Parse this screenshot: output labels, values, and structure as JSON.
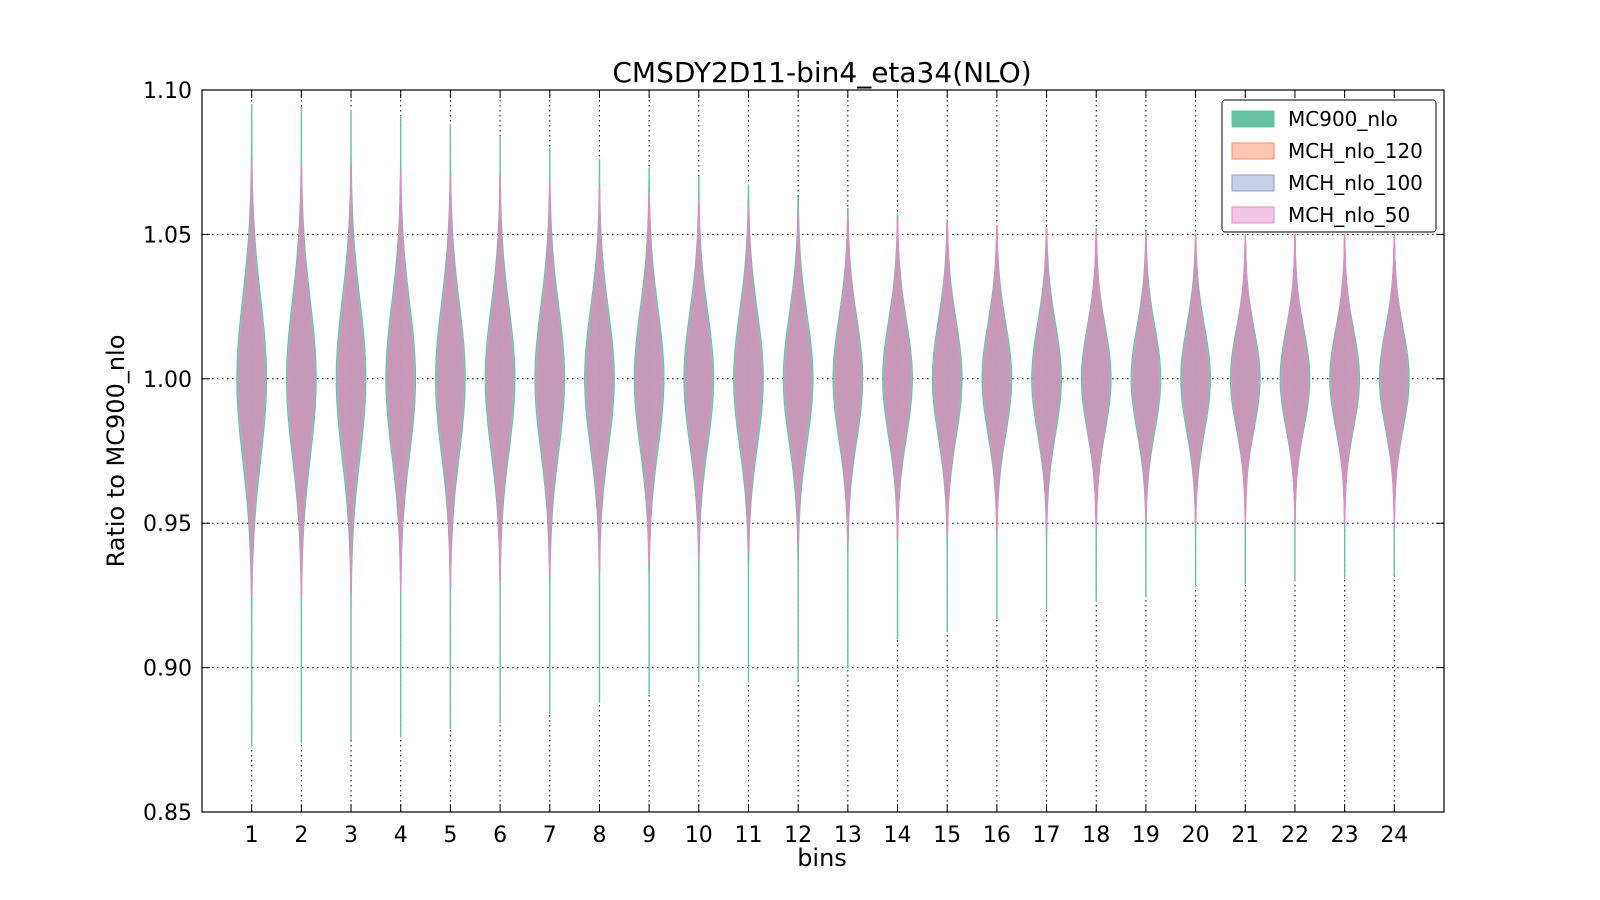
{
  "chart_data": {
    "type": "violin",
    "title": "CMSDY2D11-bin4_eta34(NLO)",
    "xlabel": "bins",
    "ylabel": "Ratio to MC900_nlo",
    "ylim": [
      0.85,
      1.1
    ],
    "yticks": [
      "0.85",
      "0.90",
      "0.95",
      "1.00",
      "1.05",
      "1.10"
    ],
    "yticks_values": [
      0.85,
      0.9,
      0.95,
      1.0,
      1.05,
      1.1
    ],
    "categories": [
      "1",
      "2",
      "3",
      "4",
      "5",
      "6",
      "7",
      "8",
      "9",
      "10",
      "11",
      "12",
      "13",
      "14",
      "15",
      "16",
      "17",
      "18",
      "19",
      "20",
      "21",
      "22",
      "23",
      "24"
    ],
    "grid": true,
    "legend_position": "top-right",
    "series": [
      {
        "name": "MC900_nlo",
        "fill": "#66c2a5",
        "edge": "#66c2a5",
        "min": [
          0.873,
          0.874,
          0.875,
          0.876,
          0.879,
          0.881,
          0.884,
          0.888,
          0.891,
          0.895,
          0.895,
          0.895,
          0.9,
          0.91,
          0.913,
          0.917,
          0.92,
          0.923,
          0.925,
          0.928,
          0.929,
          0.93,
          0.931,
          0.932
        ],
        "max": [
          1.095,
          1.094,
          1.093,
          1.091,
          1.088,
          1.084,
          1.08,
          1.076,
          1.073,
          1.07,
          1.067,
          1.063,
          1.059,
          1.057,
          1.055,
          1.053,
          1.052,
          1.052,
          1.051,
          1.05,
          1.05,
          1.05,
          1.05,
          1.05
        ],
        "center": 1.0,
        "half_width": [
          0.3,
          0.3,
          0.3,
          0.3,
          0.3,
          0.3,
          0.3,
          0.3,
          0.3,
          0.3,
          0.3,
          0.3,
          0.3,
          0.3,
          0.3,
          0.3,
          0.3,
          0.3,
          0.3,
          0.3,
          0.3,
          0.3,
          0.3,
          0.3
        ],
        "sigma": [
          0.028,
          0.027,
          0.027,
          0.026,
          0.026,
          0.025,
          0.025,
          0.024,
          0.024,
          0.023,
          0.023,
          0.022,
          0.021,
          0.02,
          0.02,
          0.019,
          0.019,
          0.018,
          0.018,
          0.018,
          0.017,
          0.017,
          0.017,
          0.017
        ]
      },
      {
        "name": "MCH_nlo_120",
        "fill": "#fc8d62",
        "edge": "#fc8d62",
        "min": [
          0.925,
          0.925,
          0.926,
          0.927,
          0.928,
          0.93,
          0.932,
          0.934,
          0.936,
          0.938,
          0.94,
          0.942,
          0.944,
          0.945,
          0.946,
          0.947,
          0.948,
          0.949,
          0.95,
          0.95,
          0.95,
          0.95,
          0.95,
          0.95
        ],
        "max": [
          1.075,
          1.074,
          1.073,
          1.072,
          1.071,
          1.07,
          1.068,
          1.066,
          1.064,
          1.062,
          1.06,
          1.058,
          1.056,
          1.055,
          1.054,
          1.053,
          1.052,
          1.051,
          1.051,
          1.05,
          1.05,
          1.05,
          1.05,
          1.05
        ],
        "center": 1.0,
        "half_width": [
          0.26,
          0.26,
          0.26,
          0.26,
          0.26,
          0.26,
          0.26,
          0.26,
          0.26,
          0.26,
          0.26,
          0.26,
          0.26,
          0.26,
          0.26,
          0.26,
          0.26,
          0.26,
          0.26,
          0.26,
          0.26,
          0.26,
          0.26,
          0.26
        ],
        "sigma": [
          0.025,
          0.025,
          0.024,
          0.024,
          0.024,
          0.023,
          0.023,
          0.022,
          0.022,
          0.021,
          0.021,
          0.02,
          0.02,
          0.019,
          0.019,
          0.018,
          0.018,
          0.018,
          0.017,
          0.017,
          0.017,
          0.017,
          0.017,
          0.017
        ]
      },
      {
        "name": "MCH_nlo_100",
        "fill": "#8da0cb",
        "edge": "#8da0cb",
        "min": [
          0.925,
          0.925,
          0.926,
          0.927,
          0.928,
          0.93,
          0.932,
          0.934,
          0.936,
          0.938,
          0.94,
          0.942,
          0.944,
          0.945,
          0.946,
          0.947,
          0.948,
          0.949,
          0.95,
          0.95,
          0.95,
          0.95,
          0.95,
          0.95
        ],
        "max": [
          1.075,
          1.074,
          1.073,
          1.072,
          1.071,
          1.07,
          1.068,
          1.066,
          1.064,
          1.062,
          1.06,
          1.058,
          1.056,
          1.056,
          1.055,
          1.053,
          1.052,
          1.051,
          1.051,
          1.05,
          1.05,
          1.05,
          1.05,
          1.05
        ],
        "center": 1.0,
        "half_width": [
          0.26,
          0.26,
          0.26,
          0.26,
          0.26,
          0.26,
          0.26,
          0.26,
          0.26,
          0.26,
          0.26,
          0.26,
          0.26,
          0.26,
          0.26,
          0.26,
          0.26,
          0.26,
          0.26,
          0.26,
          0.26,
          0.26,
          0.26,
          0.26
        ],
        "sigma": [
          0.025,
          0.025,
          0.024,
          0.024,
          0.024,
          0.023,
          0.023,
          0.022,
          0.022,
          0.021,
          0.021,
          0.02,
          0.02,
          0.019,
          0.019,
          0.018,
          0.018,
          0.018,
          0.017,
          0.017,
          0.017,
          0.017,
          0.017,
          0.017
        ]
      },
      {
        "name": "MCH_nlo_50",
        "fill": "#e78ac3",
        "edge": "#e78ac3",
        "min": [
          0.925,
          0.925,
          0.926,
          0.927,
          0.928,
          0.93,
          0.932,
          0.934,
          0.936,
          0.938,
          0.94,
          0.942,
          0.944,
          0.945,
          0.946,
          0.947,
          0.948,
          0.949,
          0.95,
          0.95,
          0.95,
          0.95,
          0.95,
          0.95
        ],
        "max": [
          1.075,
          1.074,
          1.073,
          1.072,
          1.071,
          1.07,
          1.068,
          1.066,
          1.064,
          1.062,
          1.06,
          1.058,
          1.056,
          1.055,
          1.054,
          1.053,
          1.052,
          1.051,
          1.051,
          1.05,
          1.05,
          1.05,
          1.05,
          1.05
        ],
        "center": 1.0,
        "half_width": [
          0.26,
          0.26,
          0.26,
          0.26,
          0.26,
          0.26,
          0.26,
          0.26,
          0.26,
          0.26,
          0.26,
          0.26,
          0.26,
          0.26,
          0.26,
          0.26,
          0.26,
          0.26,
          0.26,
          0.26,
          0.26,
          0.26,
          0.26,
          0.26
        ],
        "sigma": [
          0.025,
          0.025,
          0.024,
          0.024,
          0.024,
          0.023,
          0.023,
          0.022,
          0.022,
          0.021,
          0.021,
          0.02,
          0.02,
          0.019,
          0.019,
          0.018,
          0.018,
          0.018,
          0.017,
          0.017,
          0.017,
          0.017,
          0.017,
          0.017
        ]
      }
    ]
  }
}
